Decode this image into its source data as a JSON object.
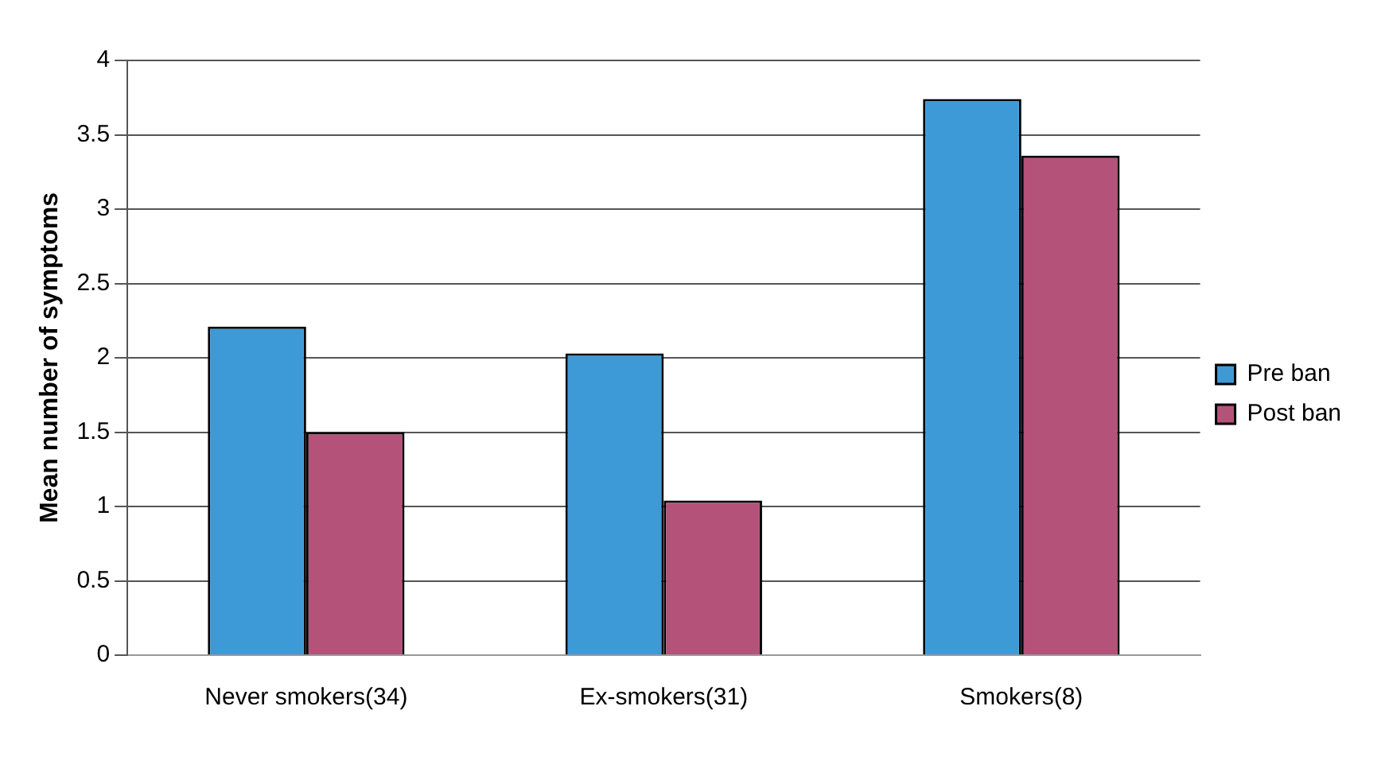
{
  "chart_data": {
    "type": "bar",
    "ylabel": "Mean number of symptoms",
    "categories": [
      "Never smokers(34)",
      "Ex-smokers(31)",
      "Smokers(8)"
    ],
    "series": [
      {
        "name": "Pre ban",
        "color": "#3d9ad6",
        "values": [
          2.21,
          2.03,
          3.74
        ]
      },
      {
        "name": "Post ban",
        "color": "#b5527a",
        "values": [
          1.5,
          1.04,
          3.36
        ]
      }
    ],
    "ylim": [
      0,
      4
    ],
    "yticks": [
      0,
      0.5,
      1,
      1.5,
      2,
      2.5,
      3,
      3.5,
      4
    ],
    "grid": "y",
    "legend": "right"
  }
}
